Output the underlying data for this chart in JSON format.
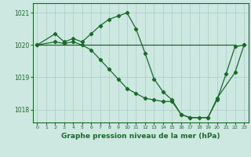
{
  "xlabel": "Graphe pression niveau de la mer (hPa)",
  "bg_color": "#cce8e0",
  "line_color": "#1a6b2a",
  "grid_color": "#aacccc",
  "xlim": [
    -0.5,
    23.5
  ],
  "ylim": [
    1017.6,
    1021.3
  ],
  "yticks": [
    1018,
    1019,
    1020,
    1021
  ],
  "xticks": [
    0,
    1,
    2,
    3,
    4,
    5,
    6,
    7,
    8,
    9,
    10,
    11,
    12,
    13,
    14,
    15,
    16,
    17,
    18,
    19,
    20,
    21,
    22,
    23
  ],
  "line1_x": [
    0,
    22
  ],
  "line1_y": [
    1020.0,
    1020.0
  ],
  "line2_x": [
    0,
    2,
    3,
    4,
    5,
    6,
    7,
    8,
    9,
    10,
    11,
    12,
    13,
    14,
    15,
    16,
    17,
    19,
    20,
    22,
    23
  ],
  "line2_y": [
    1020.0,
    1020.35,
    1020.1,
    1020.2,
    1020.1,
    1020.35,
    1020.6,
    1020.8,
    1020.9,
    1021.0,
    1020.5,
    1019.75,
    1018.95,
    1018.55,
    1018.3,
    1017.85,
    1017.75,
    1017.75,
    1018.35,
    1019.15,
    1020.0
  ],
  "line3_x": [
    0,
    2,
    3,
    4,
    5,
    6,
    7,
    8,
    9,
    10,
    11,
    12,
    13,
    14,
    15,
    16,
    17,
    18,
    19,
    20,
    21,
    22,
    23
  ],
  "line3_y": [
    1020.0,
    1020.1,
    1020.05,
    1020.1,
    1020.0,
    1019.85,
    1019.55,
    1019.25,
    1018.95,
    1018.65,
    1018.5,
    1018.35,
    1018.3,
    1018.25,
    1018.25,
    1017.85,
    1017.75,
    1017.75,
    1017.75,
    1018.3,
    1019.1,
    1019.95,
    1020.0
  ]
}
